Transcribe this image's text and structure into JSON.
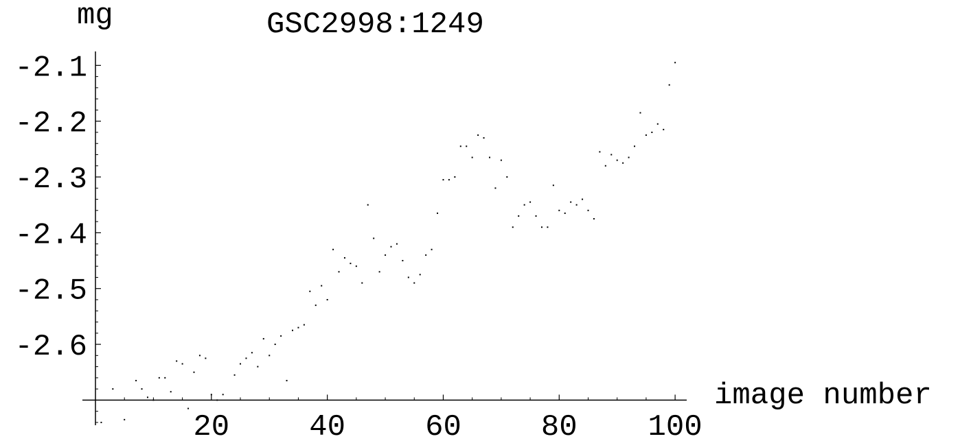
{
  "chart_data": {
    "type": "scatter",
    "title": "GSC2998:1249",
    "xlabel": "image number",
    "ylabel": "mg",
    "xlim": [
      0,
      102
    ],
    "ylim": [
      -2.745,
      -2.075
    ],
    "x_ticks": [
      20,
      40,
      60,
      80,
      100
    ],
    "x_tick_labels": [
      "20",
      "40",
      "60",
      "80",
      "100"
    ],
    "y_ticks": [
      -2.1,
      -2.2,
      -2.3,
      -2.4,
      -2.5,
      -2.6
    ],
    "y_tick_labels": [
      "-2.1",
      "-2.2",
      "-2.3",
      "-2.4",
      "-2.5",
      "-2.6"
    ],
    "x_axis_at_y": -2.7,
    "grid": false,
    "point_color": "#000000",
    "points": [
      [
        1,
        -2.74
      ],
      [
        3,
        -2.68
      ],
      [
        5,
        -2.735
      ],
      [
        7,
        -2.665
      ],
      [
        8,
        -2.68
      ],
      [
        9,
        -2.695
      ],
      [
        10,
        -2.7
      ],
      [
        11,
        -2.66
      ],
      [
        12,
        -2.66
      ],
      [
        13,
        -2.685
      ],
      [
        14,
        -2.63
      ],
      [
        15,
        -2.635
      ],
      [
        16,
        -2.715
      ],
      [
        17,
        -2.65
      ],
      [
        18,
        -2.62
      ],
      [
        19,
        -2.625
      ],
      [
        20,
        -2.69
      ],
      [
        21,
        -2.7
      ],
      [
        22,
        -2.69
      ],
      [
        24,
        -2.655
      ],
      [
        25,
        -2.635
      ],
      [
        26,
        -2.625
      ],
      [
        27,
        -2.615
      ],
      [
        28,
        -2.64
      ],
      [
        29,
        -2.59
      ],
      [
        30,
        -2.62
      ],
      [
        31,
        -2.6
      ],
      [
        32,
        -2.585
      ],
      [
        33,
        -2.665
      ],
      [
        34,
        -2.575
      ],
      [
        35,
        -2.57
      ],
      [
        36,
        -2.565
      ],
      [
        37,
        -2.505
      ],
      [
        38,
        -2.53
      ],
      [
        39,
        -2.495
      ],
      [
        40,
        -2.52
      ],
      [
        41,
        -2.43
      ],
      [
        42,
        -2.47
      ],
      [
        43,
        -2.445
      ],
      [
        44,
        -2.455
      ],
      [
        45,
        -2.46
      ],
      [
        46,
        -2.49
      ],
      [
        47,
        -2.35
      ],
      [
        48,
        -2.41
      ],
      [
        49,
        -2.47
      ],
      [
        50,
        -2.44
      ],
      [
        51,
        -2.425
      ],
      [
        52,
        -2.42
      ],
      [
        53,
        -2.45
      ],
      [
        54,
        -2.48
      ],
      [
        55,
        -2.49
      ],
      [
        56,
        -2.475
      ],
      [
        57,
        -2.44
      ],
      [
        58,
        -2.43
      ],
      [
        59,
        -2.365
      ],
      [
        60,
        -2.305
      ],
      [
        61,
        -2.305
      ],
      [
        62,
        -2.3
      ],
      [
        63,
        -2.245
      ],
      [
        64,
        -2.245
      ],
      [
        65,
        -2.265
      ],
      [
        66,
        -2.225
      ],
      [
        67,
        -2.23
      ],
      [
        68,
        -2.265
      ],
      [
        69,
        -2.32
      ],
      [
        70,
        -2.27
      ],
      [
        71,
        -2.3
      ],
      [
        72,
        -2.39
      ],
      [
        73,
        -2.37
      ],
      [
        74,
        -2.35
      ],
      [
        75,
        -2.345
      ],
      [
        76,
        -2.37
      ],
      [
        77,
        -2.39
      ],
      [
        78,
        -2.39
      ],
      [
        79,
        -2.315
      ],
      [
        80,
        -2.36
      ],
      [
        81,
        -2.365
      ],
      [
        82,
        -2.345
      ],
      [
        83,
        -2.35
      ],
      [
        84,
        -2.34
      ],
      [
        85,
        -2.36
      ],
      [
        86,
        -2.375
      ],
      [
        87,
        -2.255
      ],
      [
        88,
        -2.28
      ],
      [
        89,
        -2.26
      ],
      [
        90,
        -2.27
      ],
      [
        91,
        -2.275
      ],
      [
        92,
        -2.265
      ],
      [
        93,
        -2.245
      ],
      [
        94,
        -2.185
      ],
      [
        95,
        -2.225
      ],
      [
        96,
        -2.22
      ],
      [
        97,
        -2.205
      ],
      [
        98,
        -2.215
      ],
      [
        99,
        -2.135
      ],
      [
        100,
        -2.095
      ]
    ]
  }
}
